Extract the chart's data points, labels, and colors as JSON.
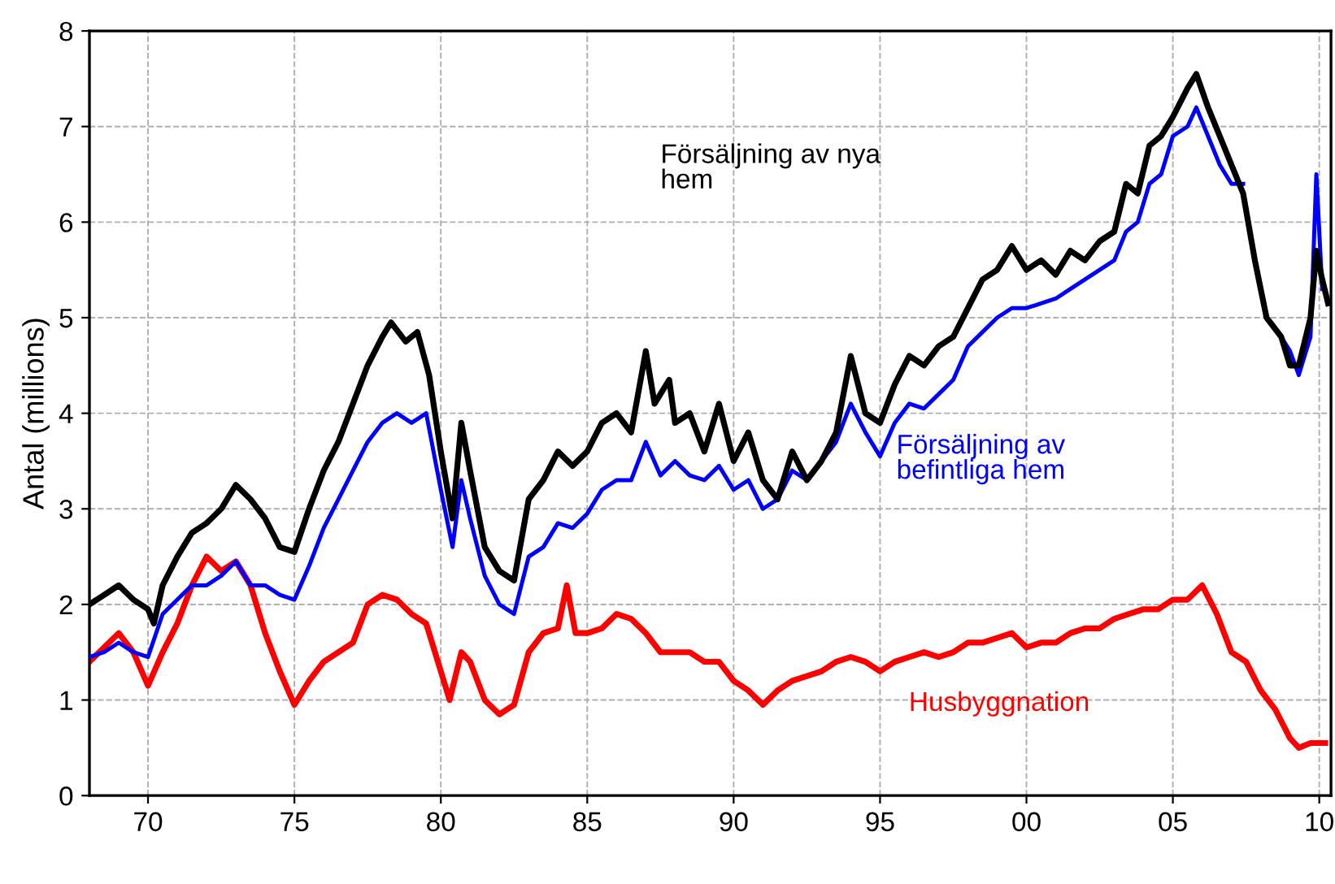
{
  "chart_data": {
    "type": "line",
    "ylabel": "Antal (millions)",
    "xlim": [
      1968,
      2010.4
    ],
    "ylim": [
      0,
      8
    ],
    "xticks": [
      {
        "value": 1970,
        "label": "70"
      },
      {
        "value": 1975,
        "label": "75"
      },
      {
        "value": 1980,
        "label": "80"
      },
      {
        "value": 1985,
        "label": "85"
      },
      {
        "value": 1990,
        "label": "90"
      },
      {
        "value": 1995,
        "label": "95"
      },
      {
        "value": 2000,
        "label": "00"
      },
      {
        "value": 2005,
        "label": "05"
      },
      {
        "value": 2010,
        "label": "10"
      }
    ],
    "yticks": [
      0,
      1,
      2,
      3,
      4,
      5,
      6,
      7,
      8
    ],
    "grid": true,
    "legend": false,
    "line_style": "solid",
    "marker": "none",
    "series": [
      {
        "name": "Försäljning av nya\nhem",
        "color": "#000000",
        "x": [
          1968,
          1968.5,
          1969,
          1969.5,
          1970,
          1970.2,
          1970.5,
          1971,
          1971.5,
          1972,
          1972.5,
          1973,
          1973.5,
          1974,
          1974.5,
          1975,
          1975.5,
          1976,
          1976.5,
          1977,
          1977.5,
          1978,
          1978.3,
          1978.8,
          1979.2,
          1979.6,
          1980,
          1980.4,
          1980.7,
          1981,
          1981.5,
          1982,
          1982.5,
          1983,
          1983.5,
          1984,
          1984.5,
          1985,
          1985.5,
          1986,
          1986.5,
          1987,
          1987.3,
          1987.8,
          1988,
          1988.5,
          1989,
          1989.5,
          1990,
          1990.5,
          1991,
          1991.5,
          1992,
          1992.5,
          1993,
          1993.5,
          1994,
          1994.5,
          1995,
          1995.5,
          1996,
          1996.5,
          1997,
          1997.5,
          1998,
          1998.5,
          1999,
          1999.5,
          2000,
          2000.5,
          2001,
          2001.5,
          2002,
          2002.5,
          2003,
          2003.4,
          2003.8,
          2004.2,
          2004.6,
          2005,
          2005.5,
          2005.8,
          2006.2,
          2006.6,
          2007,
          2007.4,
          2007.8,
          2008.2,
          2008.7,
          2009,
          2009.3,
          2009.7,
          2009.9,
          2010.1,
          2010.3
        ],
        "values": [
          2.0,
          2.1,
          2.2,
          2.05,
          1.95,
          1.8,
          2.2,
          2.5,
          2.75,
          2.85,
          3.0,
          3.25,
          3.1,
          2.9,
          2.6,
          2.55,
          3.0,
          3.4,
          3.7,
          4.1,
          4.5,
          4.8,
          4.95,
          4.75,
          4.85,
          4.4,
          3.6,
          2.9,
          3.9,
          3.4,
          2.6,
          2.35,
          2.25,
          3.1,
          3.3,
          3.6,
          3.45,
          3.6,
          3.9,
          4.0,
          3.8,
          4.65,
          4.1,
          4.35,
          3.9,
          4.0,
          3.6,
          4.1,
          3.5,
          3.8,
          3.3,
          3.1,
          3.6,
          3.3,
          3.5,
          3.8,
          4.6,
          4.0,
          3.9,
          4.3,
          4.6,
          4.5,
          4.7,
          4.8,
          5.1,
          5.4,
          5.5,
          5.75,
          5.5,
          5.6,
          5.45,
          5.7,
          5.6,
          5.8,
          5.9,
          6.4,
          6.3,
          6.8,
          6.9,
          7.1,
          7.4,
          7.55,
          7.2,
          6.9,
          6.6,
          6.3,
          5.6,
          5.0,
          4.8,
          4.5,
          4.5,
          5.0,
          5.7,
          5.4,
          5.15
        ]
      },
      {
        "name": "Försäljning av\nbefintliga hem",
        "color": "#0000ff",
        "x": [
          1968,
          1968.5,
          1969,
          1969.5,
          1970,
          1970.5,
          1971,
          1971.5,
          1972,
          1972.5,
          1973,
          1973.5,
          1974,
          1974.5,
          1975,
          1975.5,
          1976,
          1976.5,
          1977,
          1977.5,
          1978,
          1978.5,
          1979,
          1979.5,
          1980,
          1980.4,
          1980.7,
          1981,
          1981.5,
          1982,
          1982.5,
          1983,
          1983.5,
          1984,
          1984.5,
          1985,
          1985.5,
          1986,
          1986.5,
          1987,
          1987.5,
          1988,
          1988.5,
          1989,
          1989.5,
          1990,
          1990.5,
          1991,
          1991.5,
          1992,
          1992.5,
          1993,
          1993.5,
          1994,
          1994.5,
          1995,
          1995.5,
          1996,
          1996.5,
          1997,
          1997.5,
          1998,
          1998.5,
          1999,
          1999.5,
          2000,
          2000.5,
          2001,
          2001.5,
          2002,
          2002.5,
          2003,
          2003.4,
          2003.8,
          2004.2,
          2004.6,
          2005,
          2005.5,
          2005.8,
          2006.2,
          2006.6,
          2007,
          2007.4,
          2007.8,
          2008.2,
          2008.7,
          2009,
          2009.3,
          2009.7,
          2009.9,
          2010.1
        ],
        "values": [
          1.45,
          1.5,
          1.6,
          1.5,
          1.45,
          1.9,
          2.05,
          2.2,
          2.2,
          2.3,
          2.45,
          2.2,
          2.2,
          2.1,
          2.05,
          2.4,
          2.8,
          3.1,
          3.4,
          3.7,
          3.9,
          4.0,
          3.9,
          4.0,
          3.2,
          2.6,
          3.3,
          2.9,
          2.3,
          2.0,
          1.9,
          2.5,
          2.6,
          2.85,
          2.8,
          2.95,
          3.2,
          3.3,
          3.3,
          3.7,
          3.35,
          3.5,
          3.35,
          3.3,
          3.45,
          3.2,
          3.3,
          3.0,
          3.1,
          3.4,
          3.3,
          3.5,
          3.7,
          4.1,
          3.8,
          3.55,
          3.9,
          4.1,
          4.05,
          4.2,
          4.35,
          4.7,
          4.85,
          5.0,
          5.1,
          5.1,
          5.15,
          5.2,
          5.3,
          5.4,
          5.5,
          5.6,
          5.9,
          6.0,
          6.4,
          6.5,
          6.9,
          7.0,
          7.2,
          6.9,
          6.6,
          6.4,
          6.4,
          null,
          null,
          4.8,
          4.65,
          4.4,
          4.8,
          6.5,
          5.3
        ]
      },
      {
        "name": "Husbyggnation",
        "color": "#ff0000",
        "x": [
          1968,
          1968.5,
          1969,
          1969.5,
          1970,
          1970.5,
          1971,
          1971.5,
          1972,
          1972.5,
          1973,
          1973.5,
          1974,
          1974.5,
          1975,
          1975.5,
          1976,
          1976.5,
          1977,
          1977.5,
          1978,
          1978.5,
          1979,
          1979.5,
          1980,
          1980.3,
          1980.7,
          1981,
          1981.5,
          1982,
          1982.5,
          1983,
          1983.5,
          1984,
          1984.3,
          1984.6,
          1985,
          1985.5,
          1986,
          1986.5,
          1987,
          1987.5,
          1988,
          1988.5,
          1989,
          1989.5,
          1990,
          1990.5,
          1991,
          1991.5,
          1992,
          1992.5,
          1993,
          1993.5,
          1994,
          1994.5,
          1995,
          1995.5,
          1996,
          1996.5,
          1997,
          1997.5,
          1998,
          1998.5,
          1999,
          1999.5,
          2000,
          2000.5,
          2001,
          2001.5,
          2002,
          2002.5,
          2003,
          2003.5,
          2004,
          2004.5,
          2005,
          2005.5,
          2006,
          2006.5,
          2007,
          2007.5,
          2008,
          2008.5,
          2009,
          2009.3,
          2009.7,
          2010.2
        ],
        "values": [
          1.4,
          1.55,
          1.7,
          1.5,
          1.15,
          1.5,
          1.8,
          2.2,
          2.5,
          2.35,
          2.45,
          2.2,
          1.7,
          1.3,
          0.95,
          1.2,
          1.4,
          1.5,
          1.6,
          2.0,
          2.1,
          2.05,
          1.9,
          1.8,
          1.3,
          1.0,
          1.5,
          1.4,
          1.0,
          0.85,
          0.95,
          1.5,
          1.7,
          1.75,
          2.2,
          1.7,
          1.7,
          1.75,
          1.9,
          1.85,
          1.7,
          1.5,
          1.5,
          1.5,
          1.4,
          1.4,
          1.2,
          1.1,
          0.95,
          1.1,
          1.2,
          1.25,
          1.3,
          1.4,
          1.45,
          1.4,
          1.3,
          1.4,
          1.45,
          1.5,
          1.45,
          1.5,
          1.6,
          1.6,
          1.65,
          1.7,
          1.55,
          1.6,
          1.6,
          1.7,
          1.75,
          1.75,
          1.85,
          1.9,
          1.95,
          1.95,
          2.05,
          2.05,
          2.2,
          1.9,
          1.5,
          1.4,
          1.1,
          0.9,
          0.6,
          0.5,
          0.55,
          0.55
        ]
      }
    ]
  }
}
